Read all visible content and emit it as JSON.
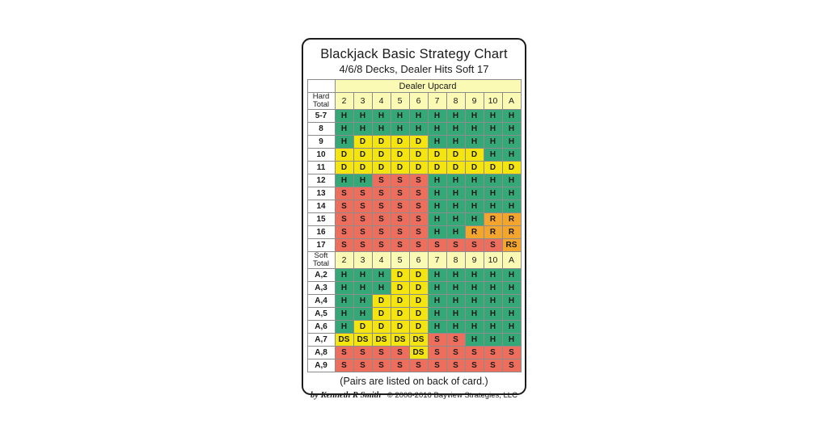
{
  "card": {
    "title": "Blackjack Basic Strategy Chart",
    "subtitle": "4/6/8 Decks, Dealer Hits Soft 17",
    "footer_note": "(Pairs are listed on back of card.)",
    "footer_author": "by Kenneth R Smith",
    "footer_copyright": "© 2008-2016 Bayview Strategies, LLC"
  },
  "colors": {
    "header_bg": "#fbfab4",
    "grid_line": "#8c8c8c",
    "card_border": "#1c1c1c",
    "cell_colors": {
      "H": "#35a878",
      "D": "#f4e410",
      "S": "#ee6e5e",
      "R": "#f3a52d",
      "DS": "#f4e410",
      "RS": "#f3a52d"
    }
  },
  "chart_data": {
    "type": "heatmap",
    "title": "Blackjack Basic Strategy Chart",
    "subtitle": "4/6/8 Decks, Dealer Hits Soft 17",
    "column_group_label": "Dealer Upcard",
    "columns": [
      "2",
      "3",
      "4",
      "5",
      "6",
      "7",
      "8",
      "9",
      "10",
      "A"
    ],
    "sections": [
      {
        "label": "Hard Total",
        "rows": [
          {
            "label": "5-7",
            "cells": [
              "H",
              "H",
              "H",
              "H",
              "H",
              "H",
              "H",
              "H",
              "H",
              "H"
            ]
          },
          {
            "label": "8",
            "cells": [
              "H",
              "H",
              "H",
              "H",
              "H",
              "H",
              "H",
              "H",
              "H",
              "H"
            ]
          },
          {
            "label": "9",
            "cells": [
              "H",
              "D",
              "D",
              "D",
              "D",
              "H",
              "H",
              "H",
              "H",
              "H"
            ]
          },
          {
            "label": "10",
            "cells": [
              "D",
              "D",
              "D",
              "D",
              "D",
              "D",
              "D",
              "D",
              "H",
              "H"
            ]
          },
          {
            "label": "11",
            "cells": [
              "D",
              "D",
              "D",
              "D",
              "D",
              "D",
              "D",
              "D",
              "D",
              "D"
            ]
          },
          {
            "label": "12",
            "cells": [
              "H",
              "H",
              "S",
              "S",
              "S",
              "H",
              "H",
              "H",
              "H",
              "H"
            ]
          },
          {
            "label": "13",
            "cells": [
              "S",
              "S",
              "S",
              "S",
              "S",
              "H",
              "H",
              "H",
              "H",
              "H"
            ]
          },
          {
            "label": "14",
            "cells": [
              "S",
              "S",
              "S",
              "S",
              "S",
              "H",
              "H",
              "H",
              "H",
              "H"
            ]
          },
          {
            "label": "15",
            "cells": [
              "S",
              "S",
              "S",
              "S",
              "S",
              "H",
              "H",
              "H",
              "R",
              "R"
            ]
          },
          {
            "label": "16",
            "cells": [
              "S",
              "S",
              "S",
              "S",
              "S",
              "H",
              "H",
              "R",
              "R",
              "R"
            ]
          },
          {
            "label": "17",
            "cells": [
              "S",
              "S",
              "S",
              "S",
              "S",
              "S",
              "S",
              "S",
              "S",
              "RS"
            ]
          }
        ]
      },
      {
        "label": "Soft Total",
        "rows": [
          {
            "label": "A,2",
            "cells": [
              "H",
              "H",
              "H",
              "D",
              "D",
              "H",
              "H",
              "H",
              "H",
              "H"
            ]
          },
          {
            "label": "A,3",
            "cells": [
              "H",
              "H",
              "H",
              "D",
              "D",
              "H",
              "H",
              "H",
              "H",
              "H"
            ]
          },
          {
            "label": "A,4",
            "cells": [
              "H",
              "H",
              "D",
              "D",
              "D",
              "H",
              "H",
              "H",
              "H",
              "H"
            ]
          },
          {
            "label": "A,5",
            "cells": [
              "H",
              "H",
              "D",
              "D",
              "D",
              "H",
              "H",
              "H",
              "H",
              "H"
            ]
          },
          {
            "label": "A,6",
            "cells": [
              "H",
              "D",
              "D",
              "D",
              "D",
              "H",
              "H",
              "H",
              "H",
              "H"
            ]
          },
          {
            "label": "A,7",
            "cells": [
              "DS",
              "DS",
              "DS",
              "DS",
              "DS",
              "S",
              "S",
              "H",
              "H",
              "H"
            ]
          },
          {
            "label": "A,8",
            "cells": [
              "S",
              "S",
              "S",
              "S",
              "DS",
              "S",
              "S",
              "S",
              "S",
              "S"
            ]
          },
          {
            "label": "A,9",
            "cells": [
              "S",
              "S",
              "S",
              "S",
              "S",
              "S",
              "S",
              "S",
              "S",
              "S"
            ]
          }
        ]
      }
    ]
  }
}
